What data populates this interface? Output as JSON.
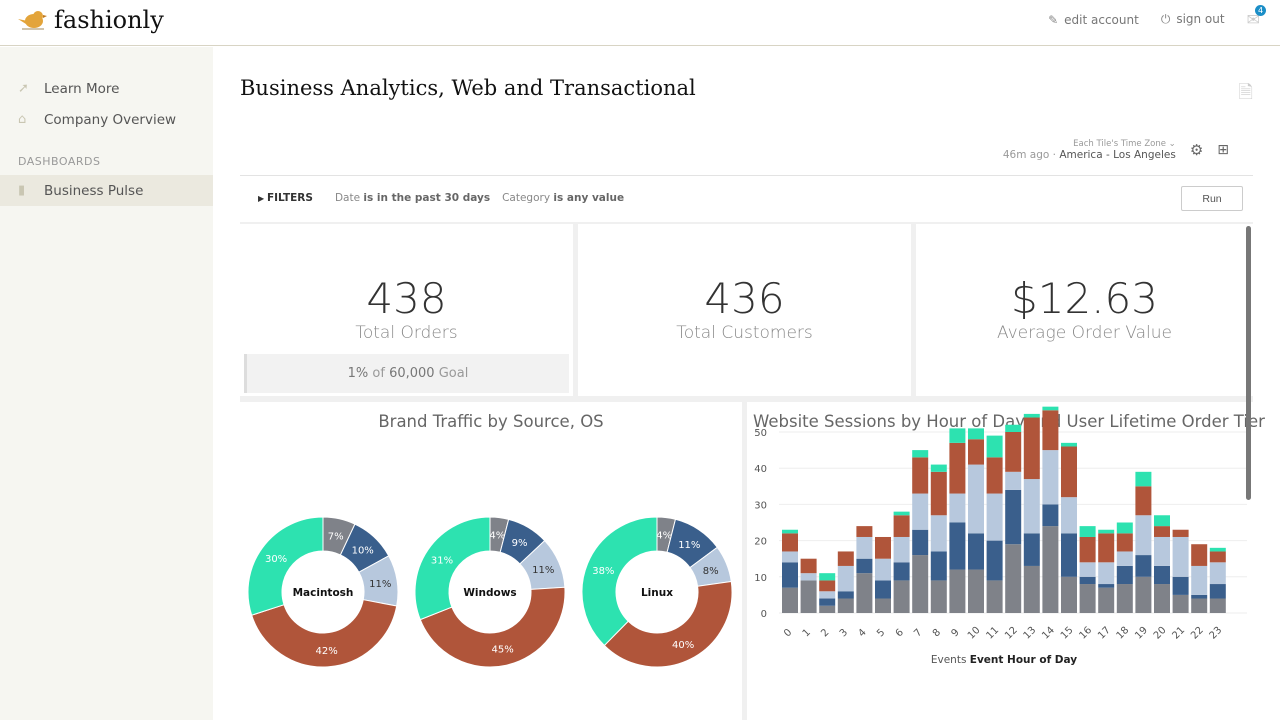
{
  "header": {
    "brand": "fashionly",
    "edit_account": "edit account",
    "sign_out": "sign out",
    "mail_count": "4"
  },
  "sidebar": {
    "items": [
      {
        "label": "Learn More",
        "icon": "arrow-icon"
      },
      {
        "label": "Company Overview",
        "icon": "home-icon"
      }
    ],
    "section": "DASHBOARDS",
    "dashboards": [
      {
        "label": "Business Pulse",
        "icon": "chart-icon",
        "active": true
      }
    ]
  },
  "dashboard": {
    "title": "Business Analytics, Web and Transactional",
    "updated": "46m ago",
    "tz_label": "Each Tile's Time Zone",
    "tz_value": "America - Los Angeles",
    "filters_label": "FILTERS",
    "filter1_field": "Date",
    "filter1_value": "is in the past 30 days",
    "filter2_field": "Category",
    "filter2_value": "is any value",
    "run": "Run"
  },
  "kpis": [
    {
      "value": "438",
      "label": "Total Orders",
      "goal_pct": "1%",
      "goal_of": "of",
      "goal_value": "60,000",
      "goal_word": "Goal"
    },
    {
      "value": "436",
      "label": "Total Customers"
    },
    {
      "value": "$12.63",
      "label": "Average Order Value"
    }
  ],
  "colors": {
    "gray": "#7f8289",
    "darkblue": "#3a5f8c",
    "lightblue": "#b7c8dd",
    "red": "#b0553a",
    "green": "#2de2b0"
  },
  "chart_data": [
    {
      "type": "pie",
      "title": "Brand Traffic by Source, OS",
      "donut": true,
      "charts": [
        {
          "label": "Macintosh",
          "values": [
            7,
            10,
            11,
            42,
            30
          ]
        },
        {
          "label": "Windows",
          "values": [
            4,
            9,
            11,
            45,
            31
          ]
        },
        {
          "label": "Linux",
          "values": [
            4,
            11,
            8,
            40,
            38
          ]
        }
      ]
    },
    {
      "type": "bar",
      "stacked": true,
      "title": "Website Sessions by Hour of Day and User Lifetime Order Tier",
      "xlabel_prefix": "Events",
      "xlabel": "Event Hour of Day",
      "ylim": [
        0,
        57
      ],
      "yticks": [
        0,
        10,
        20,
        30,
        40,
        50
      ],
      "grid": true,
      "categories": [
        "0",
        "1",
        "2",
        "3",
        "4",
        "5",
        "6",
        "7",
        "8",
        "9",
        "10",
        "11",
        "12",
        "13",
        "14",
        "15",
        "16",
        "17",
        "18",
        "19",
        "20",
        "21",
        "22",
        "23"
      ],
      "series": [
        {
          "values": [
            7,
            9,
            2,
            4,
            11,
            4,
            9,
            16,
            9,
            12,
            12,
            9,
            19,
            13,
            24,
            10,
            8,
            7,
            8,
            10,
            8,
            5,
            4,
            4
          ]
        },
        {
          "values": [
            7,
            0,
            2,
            2,
            4,
            5,
            5,
            7,
            8,
            13,
            10,
            11,
            15,
            9,
            6,
            12,
            2,
            1,
            5,
            6,
            5,
            5,
            1,
            4
          ]
        },
        {
          "values": [
            3,
            2,
            2,
            7,
            6,
            6,
            7,
            10,
            10,
            8,
            19,
            13,
            5,
            15,
            15,
            10,
            4,
            6,
            4,
            11,
            8,
            11,
            8,
            6
          ]
        },
        {
          "values": [
            5,
            4,
            3,
            4,
            3,
            6,
            6,
            10,
            12,
            14,
            7,
            10,
            11,
            17,
            11,
            14,
            7,
            8,
            5,
            8,
            3,
            2,
            6,
            3
          ]
        },
        {
          "values": [
            1,
            0,
            2,
            0,
            0,
            0,
            1,
            2,
            2,
            4,
            3,
            6,
            2,
            1,
            1,
            1,
            3,
            1,
            3,
            4,
            3,
            0,
            0,
            1
          ]
        }
      ]
    }
  ]
}
